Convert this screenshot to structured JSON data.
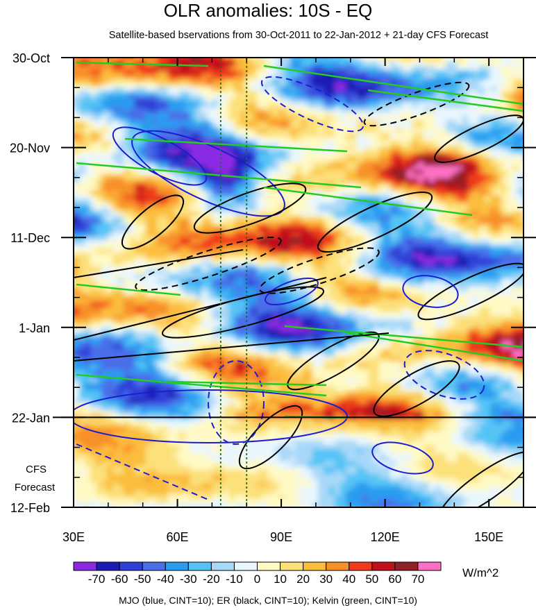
{
  "title": "OLR anomalies: 10S - EQ",
  "subtitle": "Satellite-based bservations from 30-Oct-2011 to 22-Jan-2012 + 21-day CFS Forecast",
  "footnote": "MJO (blue, CINT=10); ER (black, CINT=10); Kelvin (green, CINT=10)",
  "forecast_label": [
    "CFS",
    "Forecast"
  ],
  "chart_data": {
    "type": "heatmap",
    "title": "OLR anomalies: 10S - EQ",
    "subtitle": "Satellite-based bservations from 30-Oct-2011 to 22-Jan-2012 + 21-day CFS Forecast",
    "x_axis": {
      "ticks": [
        30,
        60,
        90,
        120,
        150
      ],
      "tick_labels": [
        "30E",
        "60E",
        "90E",
        "120E",
        "150E"
      ],
      "range": [
        30,
        160
      ]
    },
    "y_axis": {
      "ticks": [
        "30-Oct",
        "20-Nov",
        "11-Dec",
        "1-Jan",
        "22-Jan",
        "12-Feb"
      ],
      "range": [
        "30-Oct-2011",
        "12-Feb-2012"
      ],
      "direction": "downward"
    },
    "observation_end": "22-Jan-2012",
    "vertical_reference_lines_longitude": [
      72.5,
      80
    ],
    "colorbar": {
      "units": "W/m^2",
      "levels": [
        -70,
        -60,
        -50,
        -40,
        -30,
        -20,
        -10,
        0,
        10,
        20,
        30,
        40,
        50,
        60,
        70
      ],
      "labels": [
        "-70",
        "-60",
        "-50",
        "-40",
        "-30",
        "-20",
        "-10",
        "0",
        "10",
        "20",
        "30",
        "40",
        "50",
        "60",
        "70"
      ],
      "colors": [
        "#8a2be2",
        "#1c1cb4",
        "#2f3fd8",
        "#4a6ee8",
        "#2b9cf0",
        "#55c4f5",
        "#a8d8f8",
        "#e9f6fd",
        "#fff9c4",
        "#fce07a",
        "#fbbd3c",
        "#f8902a",
        "#ef3a1e",
        "#c0101c",
        "#8e2028",
        "#ff6fc4"
      ]
    },
    "contours": [
      {
        "name": "MJO",
        "color": "#1c1cd0",
        "cint": 10
      },
      {
        "name": "ER",
        "color": "#000000",
        "cint": 10
      },
      {
        "name": "Kelvin",
        "color": "#22cc22",
        "cint": 10
      }
    ]
  }
}
